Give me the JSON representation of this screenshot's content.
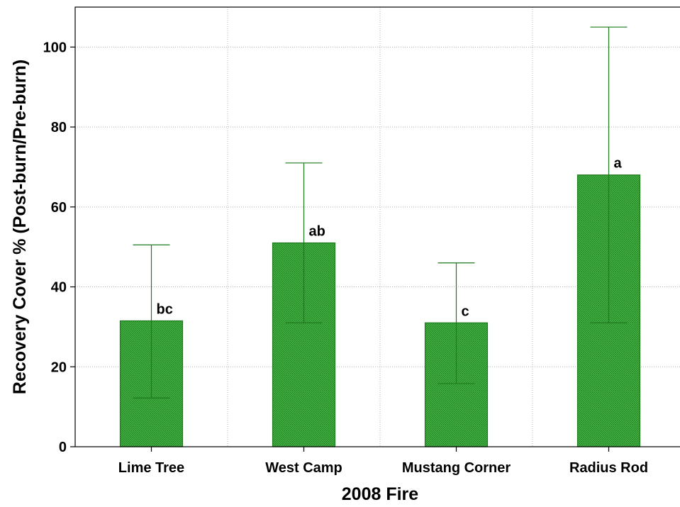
{
  "chart_data": {
    "type": "bar",
    "categories": [
      "Lime Tree",
      "West Camp",
      "Mustang Corner",
      "Radius Rod"
    ],
    "values": [
      31.5,
      51,
      31,
      68
    ],
    "error_low": [
      12.2,
      31,
      15.8,
      31
    ],
    "error_high": [
      50.5,
      71,
      46,
      105
    ],
    "significance_labels": [
      "bc",
      "ab",
      "c",
      "a"
    ],
    "xlabel": "2008 Fire",
    "ylabel": "Recovery Cover % (Post-burn/Pre-burn)",
    "ylim": [
      0,
      110
    ],
    "yticks": [
      0,
      20,
      40,
      60,
      80,
      100
    ],
    "grid": true,
    "colors": {
      "bar_fill": "#3aa63a",
      "bar_stroke": "#1e7a1e",
      "error_bar": "#1e7a1e",
      "grid": "#b5b5b5"
    }
  }
}
